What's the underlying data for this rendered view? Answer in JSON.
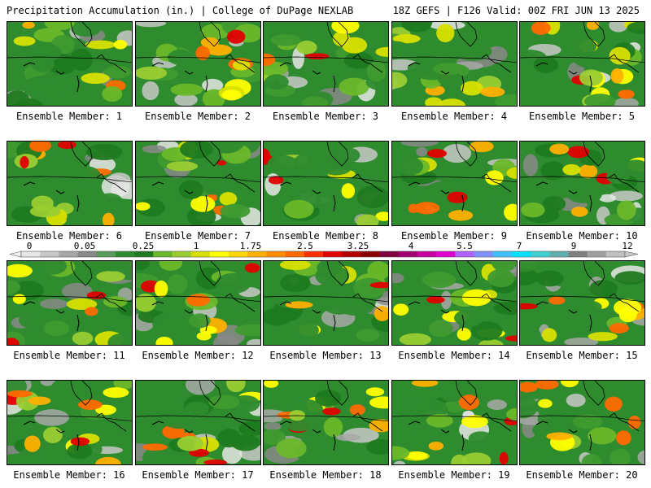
{
  "header": {
    "left": "Precipitation Accumulation (in.) | College of DuPage NEXLAB",
    "right": "18Z GEFS | F126 Valid: 00Z FRI JUN 13 2025"
  },
  "colorbar": {
    "ticks": [
      "0",
      "0.05",
      "0.25",
      "1",
      "1.75",
      "2.5",
      "3.25",
      "4",
      "5.5",
      "7",
      "9",
      "12"
    ],
    "colors": [
      "#e6e6e6",
      "#c8c8c8",
      "#a8a8a8",
      "#888888",
      "#5a9a5a",
      "#2e8b2e",
      "#1f7a1f",
      "#6ab82a",
      "#9acd32",
      "#d8e000",
      "#ffff00",
      "#ffd700",
      "#ffb000",
      "#ff8c00",
      "#ff6a00",
      "#ff3000",
      "#e00000",
      "#b40000",
      "#8b0000",
      "#800040",
      "#a00070",
      "#c800a0",
      "#e000d0",
      "#b060ff",
      "#8090ff",
      "#40c0ff",
      "#00e0ff",
      "#40d0d0",
      "#60b0b0",
      "#808080",
      "#a0a0a0",
      "#c0c0c0"
    ]
  },
  "members": [
    {
      "label": "Ensemble Member: 1"
    },
    {
      "label": "Ensemble Member: 2"
    },
    {
      "label": "Ensemble Member: 3"
    },
    {
      "label": "Ensemble Member: 4"
    },
    {
      "label": "Ensemble Member: 5"
    },
    {
      "label": "Ensemble Member: 6"
    },
    {
      "label": "Ensemble Member: 7"
    },
    {
      "label": "Ensemble Member: 8"
    },
    {
      "label": "Ensemble Member: 9"
    },
    {
      "label": "Ensemble Member: 10"
    },
    {
      "label": "Ensemble Member: 11"
    },
    {
      "label": "Ensemble Member: 12"
    },
    {
      "label": "Ensemble Member: 13"
    },
    {
      "label": "Ensemble Member: 14"
    },
    {
      "label": "Ensemble Member: 15"
    },
    {
      "label": "Ensemble Member: 16"
    },
    {
      "label": "Ensemble Member: 17"
    },
    {
      "label": "Ensemble Member: 18"
    },
    {
      "label": "Ensemble Member: 19"
    },
    {
      "label": "Ensemble Member: 20"
    }
  ]
}
